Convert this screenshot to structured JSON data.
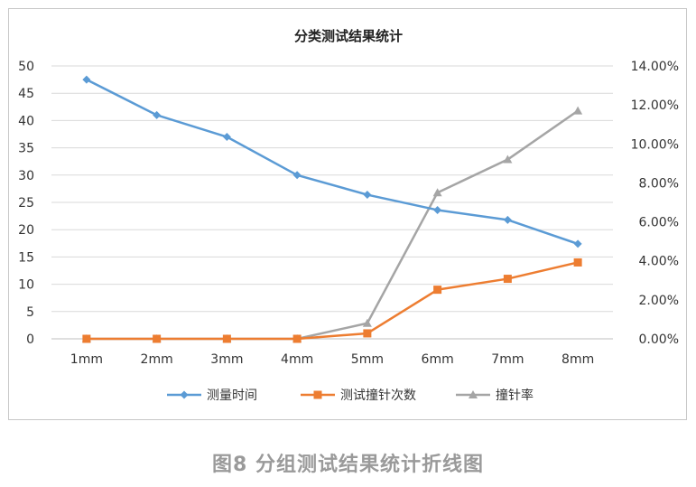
{
  "chart_data": {
    "type": "line",
    "title": "分类测试结果统计",
    "categories": [
      "1mm",
      "2mm",
      "3mm",
      "4mm",
      "5mm",
      "6mm",
      "7mm",
      "8mm"
    ],
    "y_left": {
      "min": 0,
      "max": 50,
      "step": 5,
      "ticks": [
        "0",
        "5",
        "10",
        "15",
        "20",
        "25",
        "30",
        "35",
        "40",
        "45",
        "50"
      ]
    },
    "y_right": {
      "min": 0,
      "max": 14,
      "step": 2,
      "ticks": [
        "0.00%",
        "2.00%",
        "4.00%",
        "6.00%",
        "8.00%",
        "10.00%",
        "12.00%",
        "14.00%"
      ]
    },
    "series": [
      {
        "name": "测量时间",
        "axis": "left",
        "marker": "diamond",
        "color": "#5b9bd5",
        "values": [
          47.5,
          41,
          37,
          30,
          26.4,
          23.6,
          21.8,
          17.4
        ]
      },
      {
        "name": "测试撞针次数",
        "axis": "left",
        "marker": "square",
        "color": "#ed7d31",
        "values": [
          0,
          0,
          0,
          0,
          1,
          9,
          11,
          14
        ]
      },
      {
        "name": "撞针率",
        "axis": "right",
        "marker": "triangle",
        "color": "#a5a5a5",
        "values": [
          0,
          0,
          0,
          0,
          0.8,
          7.5,
          9.2,
          11.7
        ]
      }
    ],
    "grid": true,
    "legend": "bottom"
  },
  "caption": "图8 分组测试结果统计折线图"
}
